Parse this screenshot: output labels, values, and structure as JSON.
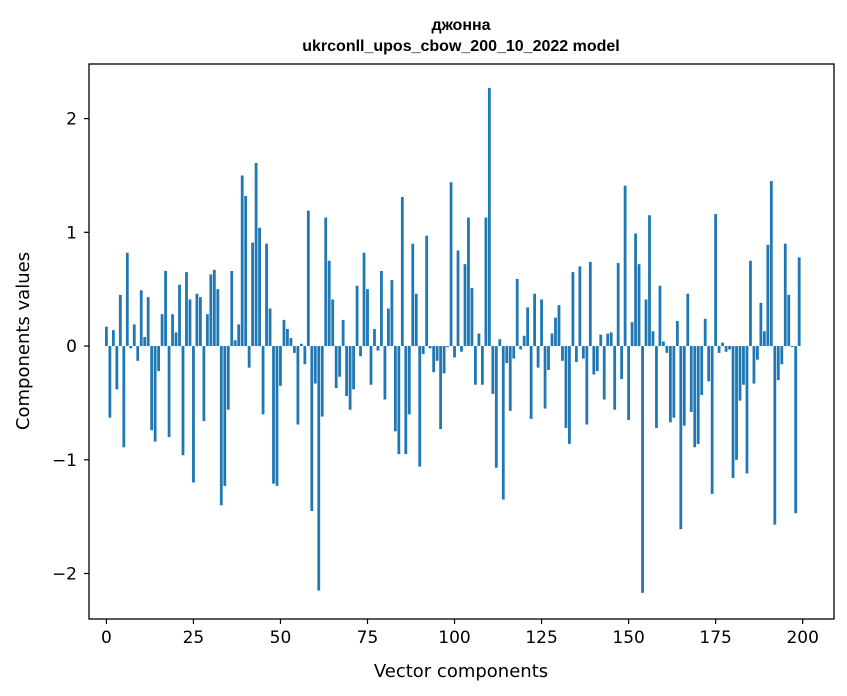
{
  "chart_data": {
    "type": "bar",
    "title_lines": [
      "джонна",
      "ukrconll_upos_cbow_200_10_2022 model"
    ],
    "xlabel": "Vector components",
    "ylabel": "Components values",
    "xlim": [
      -5,
      209
    ],
    "ylim": [
      -2.4,
      2.48
    ],
    "x_ticks": [
      0,
      25,
      50,
      75,
      100,
      125,
      150,
      175,
      200
    ],
    "y_ticks": [
      -2,
      -1,
      0,
      1,
      2
    ],
    "y_tick_labels": [
      "−2",
      "−1",
      "0",
      "1",
      "2"
    ],
    "bar_color": "#1f77b4",
    "grid": false,
    "x": [
      0,
      1,
      2,
      3,
      4,
      5,
      6,
      7,
      8,
      9,
      10,
      11,
      12,
      13,
      14,
      15,
      16,
      17,
      18,
      19,
      20,
      21,
      22,
      23,
      24,
      25,
      26,
      27,
      28,
      29,
      30,
      31,
      32,
      33,
      34,
      35,
      36,
      37,
      38,
      39,
      40,
      41,
      42,
      43,
      44,
      45,
      46,
      47,
      48,
      49,
      50,
      51,
      52,
      53,
      54,
      55,
      56,
      57,
      58,
      59,
      60,
      61,
      62,
      63,
      64,
      65,
      66,
      67,
      68,
      69,
      70,
      71,
      72,
      73,
      74,
      75,
      76,
      77,
      78,
      79,
      80,
      81,
      82,
      83,
      84,
      85,
      86,
      87,
      88,
      89,
      90,
      91,
      92,
      93,
      94,
      95,
      96,
      97,
      98,
      99,
      100,
      101,
      102,
      103,
      104,
      105,
      106,
      107,
      108,
      109,
      110,
      111,
      112,
      113,
      114,
      115,
      116,
      117,
      118,
      119,
      120,
      121,
      122,
      123,
      124,
      125,
      126,
      127,
      128,
      129,
      130,
      131,
      132,
      133,
      134,
      135,
      136,
      137,
      138,
      139,
      140,
      141,
      142,
      143,
      144,
      145,
      146,
      147,
      148,
      149,
      150,
      151,
      152,
      153,
      154,
      155,
      156,
      157,
      158,
      159,
      160,
      161,
      162,
      163,
      164,
      165,
      166,
      167,
      168,
      169,
      170,
      171,
      172,
      173,
      174,
      175,
      176,
      177,
      178,
      179,
      180,
      181,
      182,
      183,
      184,
      185,
      186,
      187,
      188,
      189,
      190,
      191,
      192,
      193,
      194,
      195,
      196,
      197,
      198,
      199
    ],
    "values": [
      0.17,
      -0.63,
      0.14,
      -0.38,
      0.45,
      -0.89,
      0.82,
      -0.02,
      0.19,
      -0.13,
      0.49,
      0.08,
      0.43,
      -0.74,
      -0.84,
      -0.22,
      0.28,
      0.66,
      -0.8,
      0.28,
      0.12,
      0.54,
      -0.96,
      0.65,
      0.41,
      -1.2,
      0.46,
      0.43,
      -0.66,
      0.28,
      0.63,
      0.67,
      0.5,
      -1.4,
      -1.23,
      -0.56,
      0.66,
      0.05,
      0.19,
      1.5,
      1.32,
      -0.19,
      0.91,
      1.61,
      1.04,
      -0.6,
      0.9,
      0.33,
      -1.21,
      -1.23,
      -0.35,
      0.23,
      0.15,
      0.07,
      -0.06,
      -0.69,
      0.02,
      -0.16,
      1.19,
      -1.45,
      -0.33,
      -2.15,
      -0.62,
      1.13,
      0.75,
      0.41,
      -0.37,
      -0.27,
      0.23,
      -0.44,
      -0.56,
      -0.38,
      0.53,
      -0.09,
      0.82,
      0.5,
      -0.34,
      0.15,
      -0.04,
      0.66,
      -0.47,
      0.33,
      0.58,
      -0.75,
      -0.95,
      1.31,
      -0.95,
      -0.6,
      0.9,
      0.46,
      -1.06,
      -0.07,
      0.97,
      -0.02,
      -0.23,
      -0.13,
      -0.73,
      -0.24,
      -0.01,
      1.44,
      -0.1,
      0.84,
      -0.05,
      0.72,
      1.13,
      0.51,
      -0.34,
      0.11,
      -0.34,
      1.13,
      2.27,
      -0.42,
      -1.07,
      0.06,
      -1.35,
      -0.15,
      -0.57,
      -0.11,
      0.59,
      -0.03,
      0.09,
      0.34,
      -0.64,
      0.46,
      -0.19,
      0.41,
      -0.55,
      -0.21,
      0.11,
      0.25,
      0.36,
      -0.13,
      -0.72,
      -0.86,
      0.65,
      -0.14,
      0.7,
      -0.11,
      -0.69,
      0.74,
      -0.25,
      -0.22,
      0.1,
      -0.47,
      0.11,
      0.12,
      -0.56,
      0.73,
      -0.29,
      1.41,
      -0.65,
      0.21,
      0.99,
      0.72,
      -2.17,
      0.41,
      1.15,
      0.13,
      -0.72,
      0.53,
      0.04,
      -0.06,
      -0.67,
      -0.63,
      0.22,
      -1.61,
      -0.7,
      0.46,
      -0.58,
      -0.89,
      -0.86,
      -0.43,
      0.24,
      -0.31,
      -1.3,
      1.16,
      -0.06,
      0.03,
      -0.05,
      -0.03,
      -1.16,
      -1.0,
      -0.48,
      -0.34,
      -1.12,
      0.75,
      -0.33,
      -0.12,
      0.38,
      0.13,
      0.89,
      1.45,
      -1.57,
      -0.3,
      -0.16,
      0.9,
      0.45,
      -0.01,
      -1.47,
      0.78
    ]
  }
}
